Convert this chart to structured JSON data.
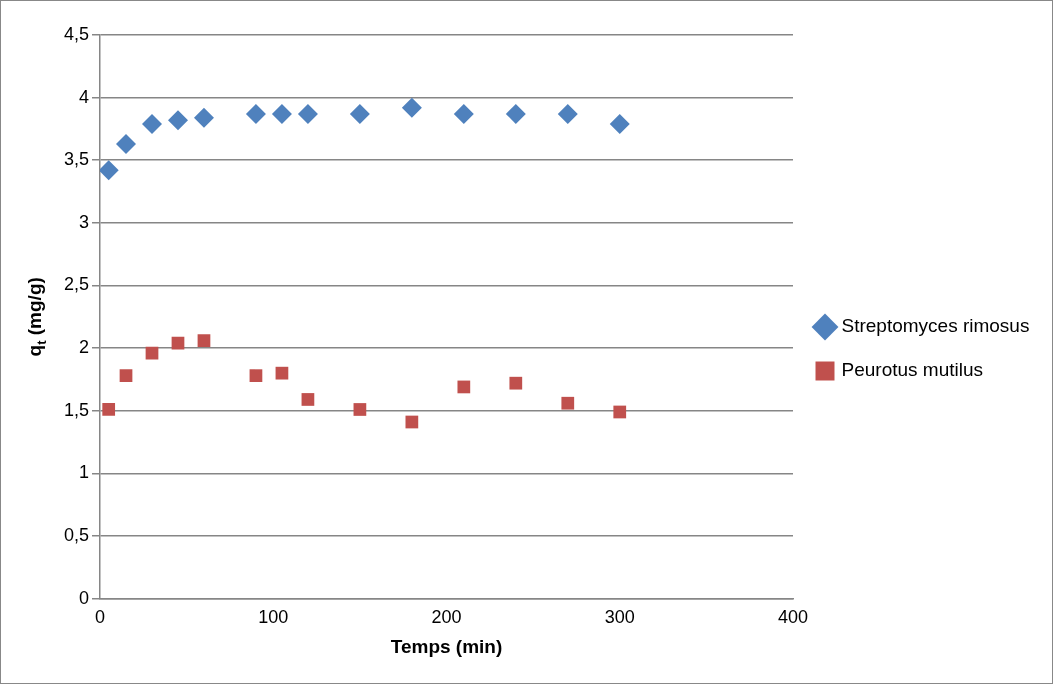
{
  "chart_data": {
    "type": "scatter",
    "xlabel": "Temps (min)",
    "ylabel": "q$_{t}$ (mg/g)",
    "x": [
      5,
      15,
      30,
      45,
      60,
      90,
      105,
      120,
      150,
      180,
      210,
      240,
      270,
      300
    ],
    "series": [
      {
        "name": "Streptomyces rimosus",
        "color": "#4f81bd",
        "marker": "diamond",
        "values": [
          3.42,
          3.63,
          3.79,
          3.82,
          3.84,
          3.87,
          3.87,
          3.87,
          3.87,
          3.92,
          3.87,
          3.87,
          3.87,
          3.79
        ]
      },
      {
        "name": "Peurotus mutilus",
        "color": "#c0504d",
        "marker": "square",
        "values": [
          1.51,
          1.78,
          1.96,
          2.04,
          2.06,
          1.78,
          1.8,
          1.59,
          1.51,
          1.41,
          1.69,
          1.72,
          1.56,
          1.49
        ]
      }
    ],
    "xlim": [
      0,
      400
    ],
    "xticks": [
      0,
      100,
      200,
      300,
      400
    ],
    "ylim": [
      0,
      4.5
    ],
    "yticks": [
      0,
      {
        "value": 0.5,
        "label": "0,5"
      },
      1,
      {
        "value": 1.5,
        "label": "1,5"
      },
      2,
      {
        "value": 2.5,
        "label": "2,5"
      },
      3,
      {
        "value": 3.5,
        "label": "3,5"
      },
      4,
      {
        "value": 4.5,
        "label": "4,5"
      }
    ],
    "grid": "y",
    "legend": "right"
  }
}
